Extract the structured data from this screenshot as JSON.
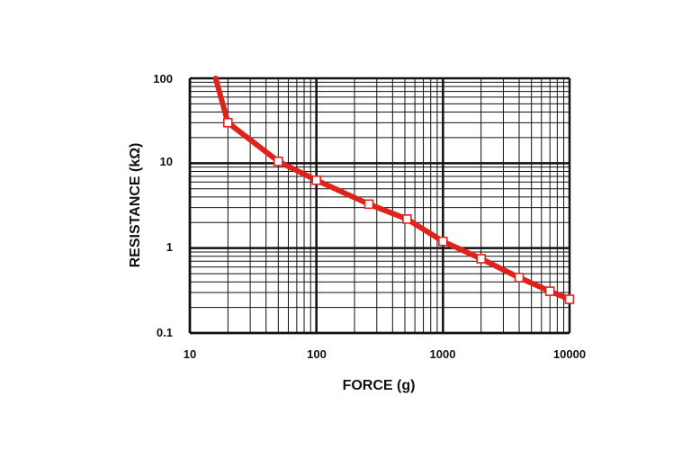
{
  "chart_data": {
    "type": "line",
    "title": "",
    "xlabel": "FORCE (g)",
    "ylabel": "RESISTANCE (kΩ)",
    "x_scale": "log",
    "y_scale": "log",
    "xlim": [
      10,
      10000
    ],
    "ylim": [
      0.1,
      100
    ],
    "x_ticks": [
      "10",
      "100",
      "1000",
      "10000"
    ],
    "y_ticks": [
      "0.1",
      "1",
      "10",
      "100"
    ],
    "grid": true,
    "legend": "none",
    "series": [
      {
        "color": "#e0231a",
        "marker": "open-square",
        "line_start": {
          "x": 16,
          "y": 100
        },
        "points": [
          {
            "x": 20,
            "y": 30
          },
          {
            "x": 50,
            "y": 10.5
          },
          {
            "x": 100,
            "y": 6.3
          },
          {
            "x": 260,
            "y": 3.3
          },
          {
            "x": 520,
            "y": 2.2
          },
          {
            "x": 1000,
            "y": 1.2
          },
          {
            "x": 2000,
            "y": 0.75
          },
          {
            "x": 4000,
            "y": 0.45
          },
          {
            "x": 7000,
            "y": 0.31
          },
          {
            "x": 10000,
            "y": 0.25
          }
        ]
      }
    ]
  }
}
